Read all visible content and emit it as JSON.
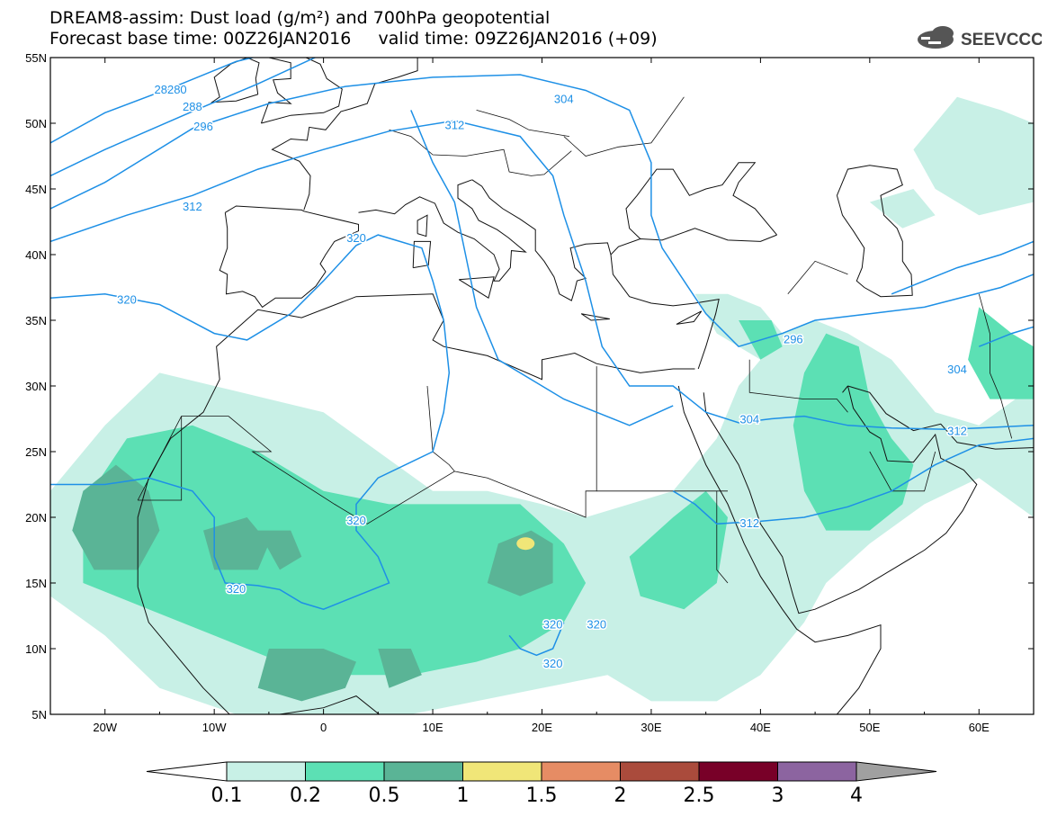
{
  "header": {
    "title_line1": "DREAM8-assim: Dust load (g/m²) and 700hPa geopotential",
    "title_line2": "Forecast base time: 00Z26JAN2016     valid time: 09Z26JAN2016 (+09)",
    "logo_text": "SEEVCCC"
  },
  "map": {
    "lat_labels": [
      "55N",
      "50N",
      "45N",
      "40N",
      "35N",
      "30N",
      "25N",
      "20N",
      "15N",
      "10N",
      "5N"
    ],
    "lon_labels": [
      "20W",
      "10W",
      "0",
      "10E",
      "20E",
      "30E",
      "40E",
      "50E",
      "60E"
    ],
    "contour_labels": [
      {
        "text": "28280",
        "lon": -14,
        "lat": 52.6
      },
      {
        "text": "288",
        "lon": -12,
        "lat": 51.3
      },
      {
        "text": "296",
        "lon": -11,
        "lat": 49.8
      },
      {
        "text": "304",
        "lon": 22,
        "lat": 51.9
      },
      {
        "text": "312",
        "lon": 12,
        "lat": 49.9
      },
      {
        "text": "312",
        "lon": -12,
        "lat": 43.7
      },
      {
        "text": "320",
        "lon": 3,
        "lat": 41.3
      },
      {
        "text": "320",
        "lon": -18,
        "lat": 36.6
      },
      {
        "text": "296",
        "lon": 43,
        "lat": 33.6
      },
      {
        "text": "304",
        "lon": 58,
        "lat": 31.3
      },
      {
        "text": "304",
        "lon": 39,
        "lat": 27.5
      },
      {
        "text": "312",
        "lon": 58,
        "lat": 26.6
      },
      {
        "text": "312",
        "lon": 39,
        "lat": 19.6
      },
      {
        "text": "320",
        "lon": 3,
        "lat": 19.8
      },
      {
        "text": "320",
        "lon": -8,
        "lat": 14.6
      },
      {
        "text": "320",
        "lon": 21,
        "lat": 11.9
      },
      {
        "text": "320",
        "lon": 25,
        "lat": 11.9
      },
      {
        "text": "320",
        "lon": 21,
        "lat": 8.9
      }
    ],
    "colors": {
      "coast": "#111111",
      "contour": "#1e90e6",
      "label_text": "#1e90e6"
    }
  },
  "colorbar": {
    "labels": [
      "0.1",
      "0.2",
      "0.5",
      "1",
      "1.5",
      "2",
      "2.5",
      "3",
      "4"
    ],
    "colors": [
      "#c8f0e6",
      "#5ce0b4",
      "#5ab496",
      "#f0e678",
      "#e68c64",
      "#aa4b3c",
      "#780028",
      "#8c64a0"
    ],
    "under_color": "#ffffff",
    "over_color": "#a0a0a0"
  },
  "dust_colors": {
    "light": "#c8f0e6",
    "medium": "#5ce0b4",
    "dark": "#5ab496",
    "peak": "#f0e678"
  }
}
